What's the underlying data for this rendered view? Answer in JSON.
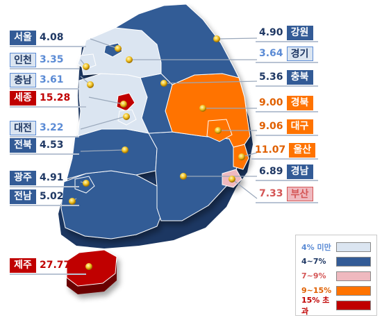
{
  "colors": {
    "lt4": "#dbe5f1",
    "b4_7": "#335b96",
    "b7_9": "#efb9bf",
    "b9_15": "#ff7300",
    "gt15": "#c00000",
    "blue_text": "#1f3864",
    "light_text": "#5b8bd5",
    "pink_text": "#d45555",
    "orange_text": "#e06000",
    "red_text": "#c00000"
  },
  "regions": [
    {
      "key": "seoul",
      "name": "서울",
      "value": "4.08",
      "bracket": "b4_7"
    },
    {
      "key": "incheon",
      "name": "인천",
      "value": "3.35",
      "bracket": "lt4"
    },
    {
      "key": "chungnam",
      "name": "충남",
      "value": "3.61",
      "bracket": "lt4"
    },
    {
      "key": "sejong",
      "name": "세종",
      "value": "15.28",
      "bracket": "gt15"
    },
    {
      "key": "daejeon",
      "name": "대전",
      "value": "3.22",
      "bracket": "lt4"
    },
    {
      "key": "jeonbuk",
      "name": "전북",
      "value": "4.53",
      "bracket": "b4_7"
    },
    {
      "key": "gwangju",
      "name": "광주",
      "value": "4.91",
      "bracket": "b4_7"
    },
    {
      "key": "jeonnam",
      "name": "전남",
      "value": "5.02",
      "bracket": "b4_7"
    },
    {
      "key": "jeju",
      "name": "제주",
      "value": "27.77",
      "bracket": "gt15"
    },
    {
      "key": "gangwon",
      "name": "강원",
      "value": "4.90",
      "bracket": "b4_7"
    },
    {
      "key": "gyeonggi",
      "name": "경기",
      "value": "3.64",
      "bracket": "lt4"
    },
    {
      "key": "chungbuk",
      "name": "충북",
      "value": "5.36",
      "bracket": "b4_7"
    },
    {
      "key": "gyeongbuk",
      "name": "경북",
      "value": "9.00",
      "bracket": "b9_15"
    },
    {
      "key": "daegu",
      "name": "대구",
      "value": "9.06",
      "bracket": "b9_15"
    },
    {
      "key": "ulsan",
      "name": "울산",
      "value": "11.07",
      "bracket": "b9_15"
    },
    {
      "key": "gyeongnam",
      "name": "경남",
      "value": "6.89",
      "bracket": "b4_7"
    },
    {
      "key": "busan",
      "name": "부산",
      "value": "7.33",
      "bracket": "b7_9"
    }
  ],
  "legend": [
    {
      "label": "4% 미만",
      "bracket": "lt4"
    },
    {
      "label": "4~7%",
      "bracket": "b4_7"
    },
    {
      "label": "7~9%",
      "bracket": "b7_9"
    },
    {
      "label": "9~15%",
      "bracket": "b9_15"
    },
    {
      "label": "15% 초과",
      "bracket": "gt15"
    }
  ]
}
